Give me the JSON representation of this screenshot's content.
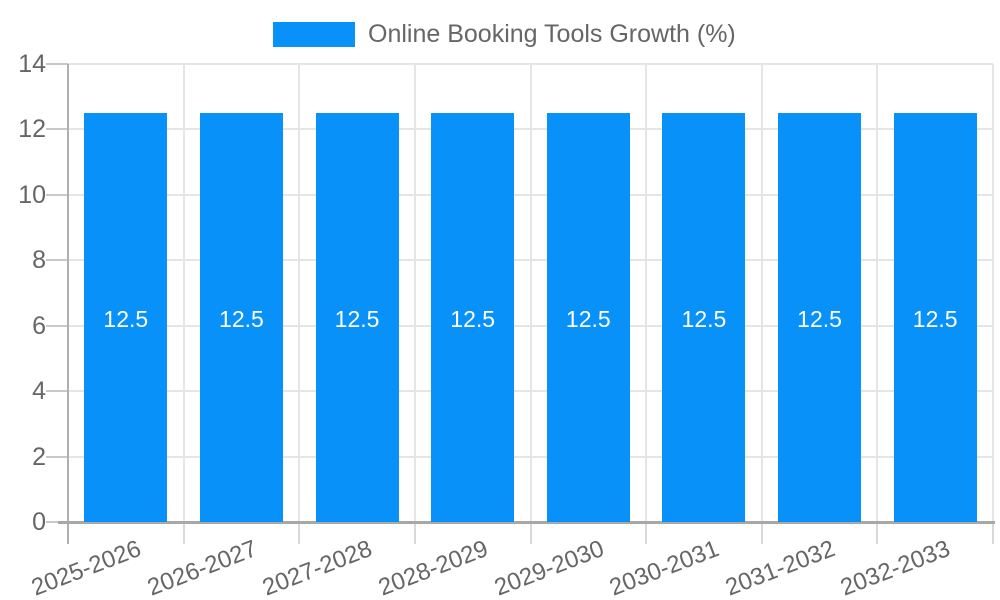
{
  "chart_data": {
    "type": "bar",
    "title": "",
    "legend": {
      "label": "Online Booking Tools Growth (%)",
      "position": "top"
    },
    "categories": [
      "2025-2026",
      "2026-2027",
      "2027-2028",
      "2028-2029",
      "2029-2030",
      "2030-2031",
      "2031-2032",
      "2032-2033"
    ],
    "series": [
      {
        "name": "Online Booking Tools Growth (%)",
        "values": [
          12.5,
          12.5,
          12.5,
          12.5,
          12.5,
          12.5,
          12.5,
          12.5
        ]
      }
    ],
    "value_labels": [
      "12.5",
      "12.5",
      "12.5",
      "12.5",
      "12.5",
      "12.5",
      "12.5",
      "12.5"
    ],
    "xlabel": "",
    "ylabel": "",
    "ylim": [
      0,
      14
    ],
    "yticks": [
      "0",
      "2",
      "4",
      "6",
      "8",
      "10",
      "12",
      "14"
    ],
    "grid": true,
    "colors": {
      "bar": "#0991fa",
      "text": "#666666",
      "value_text": "#ffffff",
      "gridline": "#e5e5e5",
      "axis": "#a8a8a8",
      "background": "#ffffff"
    }
  }
}
